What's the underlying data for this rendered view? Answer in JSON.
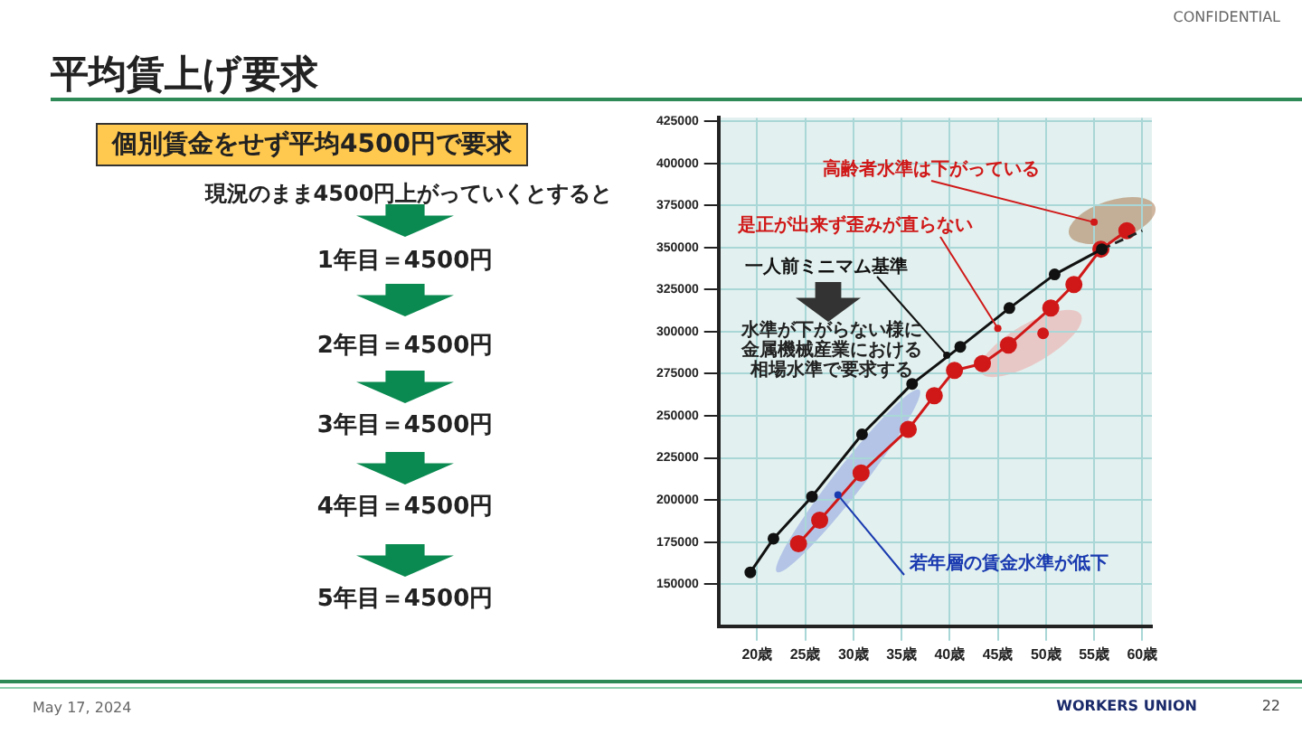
{
  "chart_data": {
    "type": "line",
    "title": "平均賃上げ要求",
    "series": [
      {
        "color": "#111111",
        "x": [
          19.3,
          21.7,
          25.7,
          30.9,
          36.1,
          41.1,
          46.2,
          50.9,
          55.8
        ],
        "values": [
          157000,
          177000,
          202000,
          239000,
          269000,
          291000,
          314000,
          334000,
          349000
        ]
      },
      {
        "color": "#222222",
        "type": "line",
        "marker": "none",
        "line_style": "dashed",
        "x": [
          55.8,
          60
        ],
        "values": [
          349000,
          360000
        ]
      },
      {
        "color": "#d01818",
        "x": [
          24.3,
          26.5,
          30.8,
          35.7,
          38.4,
          40.5,
          43.4,
          46.1,
          50.5,
          52.9,
          55.7,
          58.4
        ],
        "values": [
          174000,
          188000,
          216000,
          242000,
          262000,
          277000,
          281000,
          292000,
          314000,
          328000,
          349000,
          360000
        ]
      },
      {
        "color": "#d01818",
        "type": "scatter",
        "x": [
          49.7
        ],
        "values": [
          299000
        ]
      }
    ],
    "xlim": [
      16,
      61
    ],
    "xticks": [
      {
        "value": 20,
        "label": "20歳"
      },
      {
        "value": 25,
        "label": "25歳"
      },
      {
        "value": 30,
        "label": "30歳"
      },
      {
        "value": 35,
        "label": "35歳"
      },
      {
        "value": 40,
        "label": "40歳"
      },
      {
        "value": 45,
        "label": "45歳"
      },
      {
        "value": 50,
        "label": "50歳"
      },
      {
        "value": 55,
        "label": "55歳"
      },
      {
        "value": 60,
        "label": "60歳"
      }
    ],
    "ylim": [
      125000,
      427000
    ],
    "yticks": [
      150000,
      175000,
      200000,
      225000,
      250000,
      275000,
      300000,
      325000,
      350000,
      375000,
      400000,
      425000
    ],
    "grid": true,
    "legend": false,
    "marker": "circle",
    "line_style": "solid",
    "annotations": [
      {
        "text": "高齢者水準は下がっている",
        "x": 55,
        "y": 365000
      },
      {
        "text": "是正が出来ず歪みが直らない",
        "x": 45,
        "y": 302000
      },
      {
        "text": "一人前ミニマム基準",
        "x": 39.7,
        "y": 286000
      },
      "水準が下がらない様に金属機械産業における相場水準で要求する",
      {
        "text": "若年層の賃金水準が低下",
        "x": 28.4,
        "y": 203000
      },
      "個別賃金をせず平均4500円で要求",
      "現況のまま4500円上がっていくとすると",
      "1年目＝4500円",
      "2年目＝4500円",
      "3年目＝4500円",
      "4年目＝4500円",
      "5年目＝4500円",
      "CONFIDENTIAL",
      "May 17, 2024",
      "WORKERS UNION",
      "22"
    ]
  }
}
